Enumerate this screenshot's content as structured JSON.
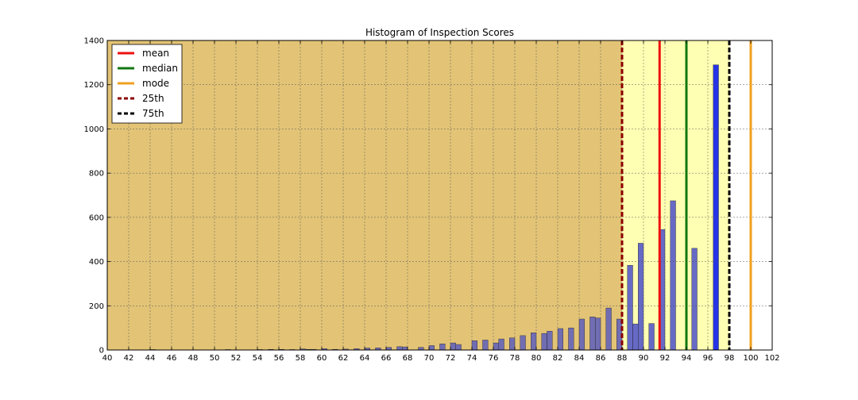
{
  "chart_data": {
    "type": "bar",
    "title": "Histogram of Inspection Scores",
    "xlabel": "",
    "ylabel": "",
    "xlim": [
      40,
      102
    ],
    "ylim": [
      0,
      1400
    ],
    "xticks": [
      40,
      42,
      44,
      46,
      48,
      50,
      52,
      54,
      56,
      58,
      60,
      62,
      64,
      66,
      68,
      70,
      72,
      74,
      76,
      78,
      80,
      82,
      84,
      86,
      88,
      90,
      92,
      94,
      96,
      98,
      100,
      102
    ],
    "yticks": [
      0,
      200,
      400,
      600,
      800,
      1000,
      1200,
      1400
    ],
    "grid": true,
    "legend_position": "top-left",
    "bar_width": 0.5,
    "regions": [
      {
        "from": 40,
        "to": 88,
        "color": "#e3c476"
      },
      {
        "from": 88,
        "to": 98,
        "color": "#ffffb3"
      }
    ],
    "bars": [
      {
        "x": 44,
        "y": 2
      },
      {
        "x": 51,
        "y": 2
      },
      {
        "x": 54,
        "y": 2
      },
      {
        "x": 55,
        "y": 3
      },
      {
        "x": 56,
        "y": 3
      },
      {
        "x": 57,
        "y": 2
      },
      {
        "x": 58,
        "y": 5
      },
      {
        "x": 58.5,
        "y": 3
      },
      {
        "x": 59,
        "y": 3
      },
      {
        "x": 60,
        "y": 6
      },
      {
        "x": 61,
        "y": 3
      },
      {
        "x": 62,
        "y": 4
      },
      {
        "x": 63,
        "y": 6
      },
      {
        "x": 64,
        "y": 9
      },
      {
        "x": 65,
        "y": 10
      },
      {
        "x": 66,
        "y": 12
      },
      {
        "x": 67,
        "y": 15
      },
      {
        "x": 67.5,
        "y": 14
      },
      {
        "x": 69,
        "y": 12
      },
      {
        "x": 70,
        "y": 20
      },
      {
        "x": 71,
        "y": 28
      },
      {
        "x": 72,
        "y": 32
      },
      {
        "x": 72.5,
        "y": 25
      },
      {
        "x": 74,
        "y": 42
      },
      {
        "x": 75,
        "y": 45
      },
      {
        "x": 76,
        "y": 32
      },
      {
        "x": 76.5,
        "y": 50
      },
      {
        "x": 77.5,
        "y": 55
      },
      {
        "x": 78.5,
        "y": 65
      },
      {
        "x": 79.5,
        "y": 78
      },
      {
        "x": 80.5,
        "y": 75
      },
      {
        "x": 81,
        "y": 85
      },
      {
        "x": 82,
        "y": 97
      },
      {
        "x": 83,
        "y": 100
      },
      {
        "x": 84,
        "y": 140
      },
      {
        "x": 85,
        "y": 150
      },
      {
        "x": 85.5,
        "y": 145
      },
      {
        "x": 86.5,
        "y": 190
      },
      {
        "x": 87.5,
        "y": 140
      },
      {
        "x": 88.5,
        "y": 383
      },
      {
        "x": 89,
        "y": 118
      },
      {
        "x": 89.5,
        "y": 483
      },
      {
        "x": 90.5,
        "y": 120
      },
      {
        "x": 91.5,
        "y": 545
      },
      {
        "x": 92.5,
        "y": 675
      },
      {
        "x": 94.5,
        "y": 460
      },
      {
        "x": 96.5,
        "y": 1290
      }
    ],
    "bar_color": "#4b50c8",
    "bar_color_high": "#0011ee",
    "high_threshold": 96,
    "lines": [
      {
        "name": "mean",
        "x": 91.5,
        "color": "#ee1111",
        "style": "solid"
      },
      {
        "name": "median",
        "x": 94,
        "color": "#117711",
        "style": "solid"
      },
      {
        "name": "mode",
        "x": 100,
        "color": "#f0a020",
        "style": "solid"
      },
      {
        "name": "25th",
        "x": 88,
        "color": "#8b0000",
        "style": "dashed"
      },
      {
        "name": "75th",
        "x": 98,
        "color": "#000000",
        "style": "dashed"
      }
    ]
  }
}
